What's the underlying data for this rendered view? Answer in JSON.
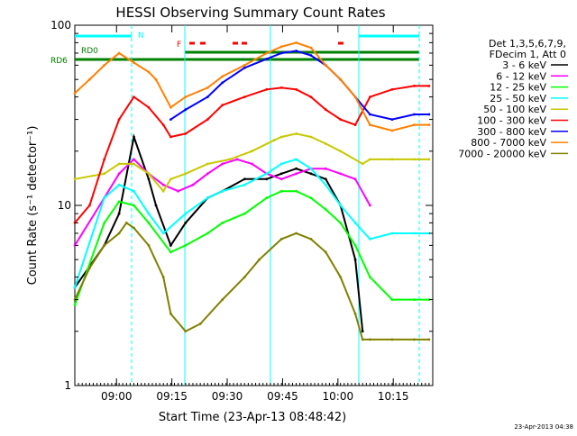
{
  "chart_data": {
    "type": "line",
    "title": "HESSI Observing Summary Count Rates",
    "xlabel": "Start Time (23-Apr-13 08:48:42)",
    "ylabel": "Count Rate (s⁻¹ detector⁻¹)",
    "y_scale": "log",
    "ylim": [
      1,
      100
    ],
    "xlim_minutes_after_start": [
      0,
      97
    ],
    "x_tick_labels": [
      "09:00",
      "09:15",
      "09:30",
      "09:45",
      "10:00",
      "10:15"
    ],
    "x_tick_minutes_after_start": [
      11.3,
      26.3,
      41.3,
      56.3,
      71.3,
      86.3
    ],
    "y_tick_labels": [
      "1",
      "10",
      "100"
    ],
    "y_tick_values": [
      1,
      10,
      100
    ],
    "grid": false,
    "legend_header": [
      "Det 1,3,5,6,7,9,",
      "FDecim 1, Att 0"
    ],
    "legend_position": "right",
    "footer_timestamp": "23-Apr-2013 04:38",
    "flag_labels": [
      "RD0",
      "RD6",
      "N",
      "F"
    ],
    "series": [
      {
        "name": "3 - 6 keV",
        "color": "#000000",
        "x": [
          0,
          8,
          12,
          16,
          20,
          22,
          26,
          30,
          36,
          40,
          46,
          52,
          56,
          60,
          64,
          68,
          72,
          76,
          78
        ],
        "values": [
          3.5,
          6,
          9,
          24,
          14,
          10,
          6,
          8,
          11,
          12,
          14,
          14,
          15,
          16,
          15,
          14,
          10,
          5,
          2
        ]
      },
      {
        "name": "6 - 12 keV",
        "color": "#ff00ff",
        "x": [
          0,
          8,
          12,
          16,
          20,
          24,
          28,
          32,
          36,
          40,
          44,
          48,
          52,
          56,
          60,
          64,
          68,
          72,
          76,
          80
        ],
        "values": [
          6,
          11,
          15,
          18,
          15,
          13,
          12,
          13,
          15,
          17,
          18,
          17,
          15,
          14,
          15,
          16,
          16,
          15,
          14,
          10
        ]
      },
      {
        "name": "12 - 25 keV",
        "color": "#00ff00",
        "x": [
          0,
          8,
          12,
          16,
          20,
          26,
          30,
          36,
          40,
          46,
          52,
          56,
          60,
          64,
          68,
          72,
          76,
          80,
          86,
          92,
          96
        ],
        "values": [
          2.8,
          8,
          10.5,
          10,
          8,
          5.5,
          6,
          7,
          8,
          9,
          11,
          12,
          12,
          11,
          9.5,
          8,
          6,
          4,
          3,
          3,
          3
        ]
      },
      {
        "name": "25 - 50 keV",
        "color": "#00ffff",
        "x": [
          0,
          8,
          12,
          16,
          20,
          24,
          30,
          36,
          40,
          46,
          52,
          56,
          60,
          64,
          68,
          72,
          76,
          80,
          86,
          92,
          96
        ],
        "values": [
          3.5,
          11,
          13,
          12,
          9,
          7,
          9,
          11,
          12,
          13,
          15,
          17,
          18,
          16,
          13,
          10,
          8,
          6.5,
          7,
          7,
          7
        ]
      },
      {
        "name": "50 - 100 keV",
        "color": "#c8c800",
        "x": [
          0,
          8,
          12,
          16,
          20,
          24,
          26,
          30,
          36,
          42,
          48,
          54,
          56,
          60,
          64,
          68,
          72,
          78,
          80,
          86,
          92,
          96
        ],
        "values": [
          14,
          15,
          17,
          17,
          15,
          12,
          14,
          15,
          17,
          18,
          20,
          23,
          24,
          25,
          24,
          22,
          20,
          17,
          18,
          18,
          18,
          18
        ]
      },
      {
        "name": "100 - 300 keV",
        "color": "#ff0000",
        "x": [
          0,
          4,
          8,
          12,
          16,
          20,
          24,
          26,
          30,
          36,
          40,
          46,
          52,
          56,
          60,
          64,
          68,
          72,
          76,
          80,
          86,
          92,
          96
        ],
        "values": [
          8,
          10,
          18,
          30,
          40,
          35,
          28,
          24,
          25,
          30,
          36,
          40,
          44,
          45,
          44,
          40,
          34,
          30,
          28,
          40,
          44,
          46,
          46
        ]
      },
      {
        "name": "300 - 800 keV",
        "color": "#0000ff",
        "x": [
          26,
          30,
          36,
          40,
          46,
          52,
          56,
          60,
          64,
          68,
          72,
          76,
          80,
          86,
          92,
          96
        ],
        "values": [
          30,
          34,
          40,
          48,
          58,
          65,
          70,
          72,
          68,
          60,
          50,
          40,
          32,
          30,
          32,
          32
        ]
      },
      {
        "name": "800 - 7000 keV",
        "color": "#ff8000",
        "x": [
          0,
          4,
          8,
          12,
          16,
          20,
          22,
          26,
          30,
          36,
          40,
          46,
          52,
          56,
          60,
          64,
          68,
          72,
          76,
          80,
          86,
          92,
          96
        ],
        "values": [
          42,
          50,
          60,
          70,
          62,
          55,
          50,
          35,
          40,
          45,
          52,
          60,
          70,
          76,
          80,
          75,
          60,
          50,
          40,
          28,
          26,
          28,
          28
        ]
      },
      {
        "name": "7000 - 20000 keV",
        "color": "#808000",
        "x": [
          0,
          4,
          8,
          12,
          14,
          16,
          20,
          24,
          26,
          30,
          34,
          40,
          46,
          50,
          56,
          60,
          64,
          68,
          72,
          76,
          78,
          80,
          86,
          92,
          96
        ],
        "values": [
          3,
          4.5,
          6,
          7,
          8,
          7.5,
          6,
          4,
          2.5,
          2,
          2.2,
          3,
          4,
          5,
          6.5,
          7,
          6.5,
          5.5,
          4,
          2.5,
          1.8,
          1.8,
          1.8,
          1.8,
          1.8
        ]
      }
    ]
  }
}
